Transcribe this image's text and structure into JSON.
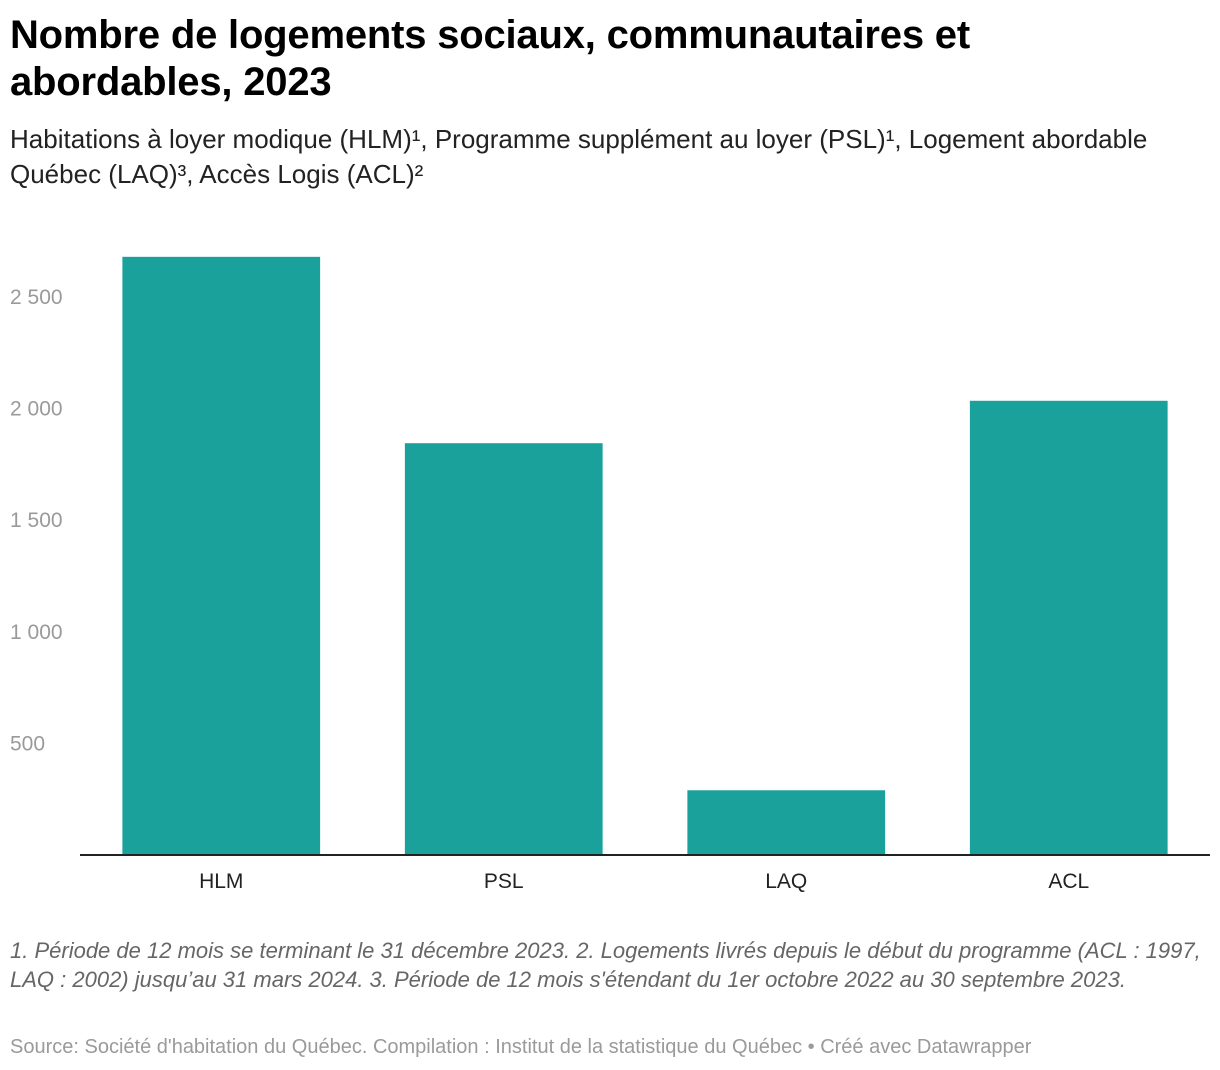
{
  "header": {
    "title": "Nombre de logements sociaux, communautaires et abordables, 2023",
    "subtitle": "Habitations à loyer modique (HLM)¹, Programme supplément au loyer (PSL)¹, Logement abordable Québec (LAQ)³, Accès Logis (ACL)²"
  },
  "chart_data": {
    "type": "bar",
    "title": "Nombre de logements sociaux, communautaires et abordables, 2023",
    "subtitle": "Habitations à loyer modique (HLM)¹, Programme supplément au loyer (PSL)¹, Logement abordable Québec (LAQ)³, Accès Logis (ACL)²",
    "categories": [
      "HLM",
      "PSL",
      "LAQ",
      "ACL"
    ],
    "values": [
      2680,
      1845,
      290,
      2035
    ],
    "ylim": [
      0,
      2700
    ],
    "yticks": [
      500,
      1000,
      1500,
      2000,
      2500
    ],
    "ytick_labels": [
      "500",
      "1 000",
      "1 500",
      "2 000",
      "2 500"
    ],
    "grid": false,
    "bar_color": "#1aa19c",
    "xlabel": "",
    "ylabel": ""
  },
  "footer": {
    "notes": "1. Période de 12 mois se terminant le 31 décembre 2023. 2. Logements livrés depuis le début du programme (ACL : 1997, LAQ : 2002) jusqu’au 31 mars 2024. 3. Période de 12 mois s'étendant du 1er octobre 2022 au 30 septembre 2023.",
    "source": "Source: Société d'habitation du Québec. Compilation : Institut de la statistique du Québec • Créé avec Datawrapper"
  }
}
